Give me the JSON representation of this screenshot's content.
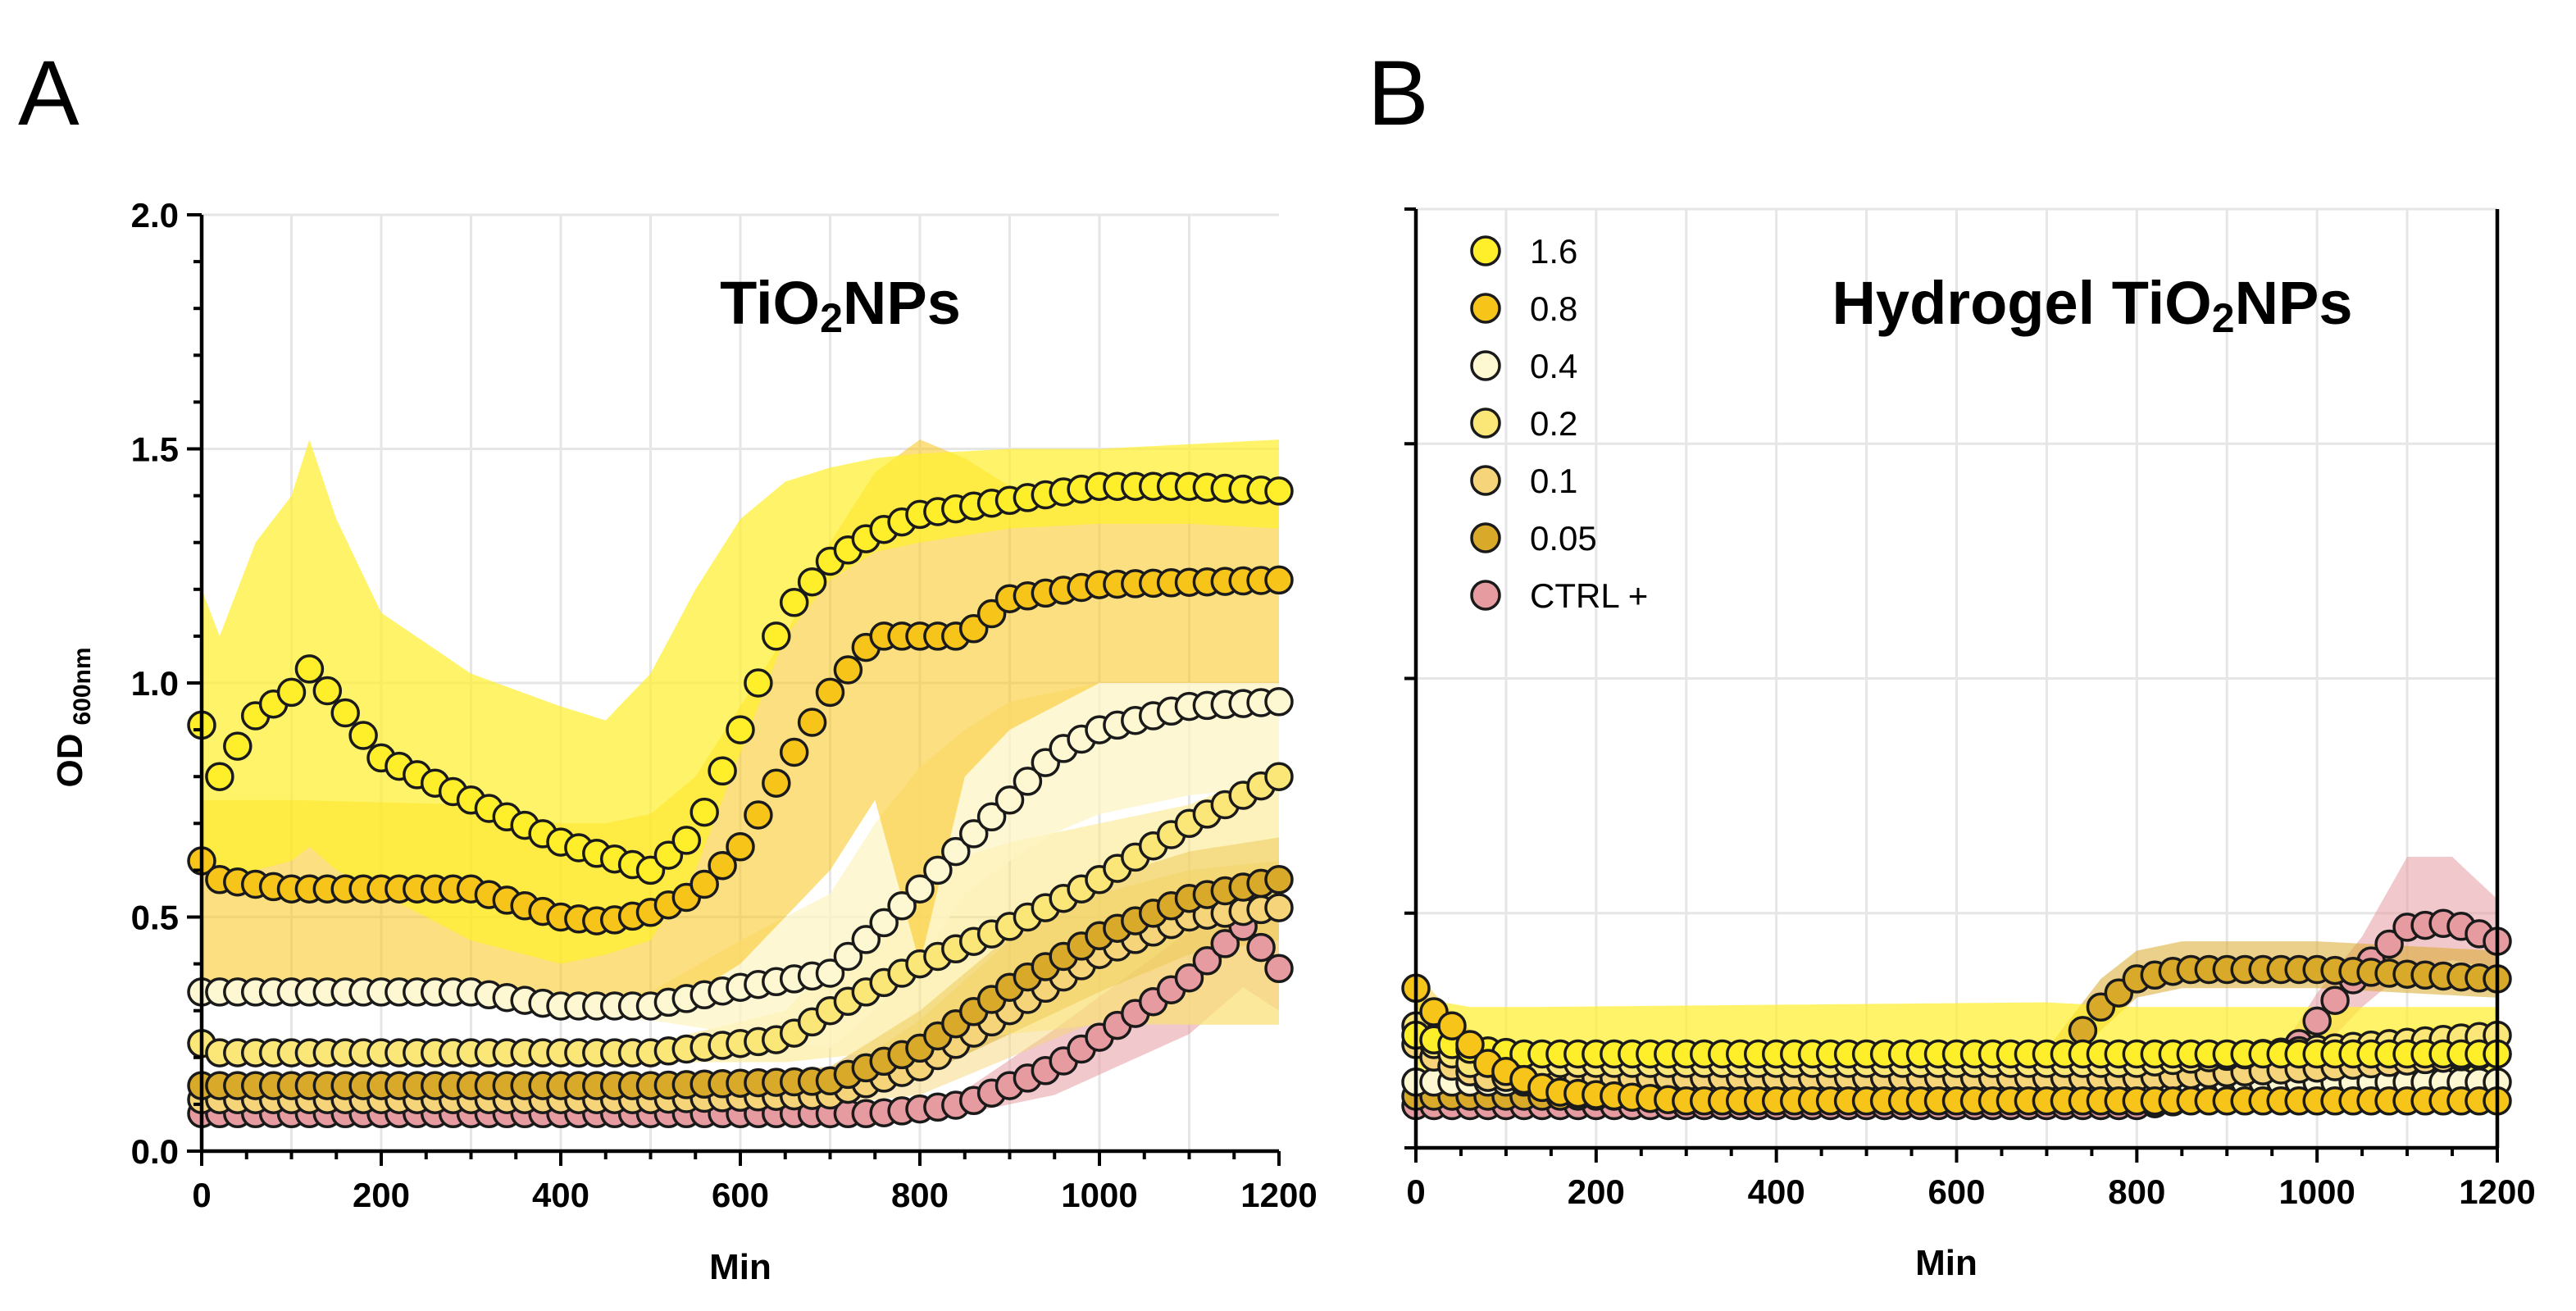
{
  "panels": [
    {
      "letter": "A"
    },
    {
      "letter": "B"
    }
  ],
  "legend": [
    {
      "label": "1.6",
      "color": "#FFEF2A"
    },
    {
      "label": "0.8",
      "color": "#F7C419"
    },
    {
      "label": "0.4",
      "color": "#FDF7D2"
    },
    {
      "label": "0.2",
      "color": "#FBE678"
    },
    {
      "label": "0.1",
      "color": "#F6D57A"
    },
    {
      "label": "0.05",
      "color": "#D9A929"
    },
    {
      "label": "CTRL +",
      "color": "#E69BA0"
    }
  ],
  "chart_data": [
    {
      "type": "scatter",
      "panel": "A",
      "title_main": "TiO",
      "title_sub": "2",
      "title_rest": "NPs",
      "ylabel_main": "OD",
      "ylabel_sub": "600nm",
      "xlabel": "Min",
      "xlim": [
        0,
        1200
      ],
      "ylim": [
        0,
        2.0
      ],
      "xticks": [
        0,
        200,
        400,
        600,
        800,
        1000,
        1200
      ],
      "xtick_labels": [
        "0",
        "200",
        "400",
        "600",
        "800",
        "1000",
        "1200"
      ],
      "yticks": [
        0,
        0.5,
        1.0,
        1.5,
        2.0
      ],
      "ytick_labels": [
        "0.0",
        "0.5",
        "1.0",
        "1.5",
        "2.0"
      ],
      "grid": true,
      "series": [
        {
          "name": "CTRL +",
          "color": "#E69BA0",
          "band": "#E69BA0",
          "band_opacity": 0.55,
          "x": [
            0,
            500,
            750,
            850,
            950,
            1100,
            1160,
            1200
          ],
          "y": [
            0.08,
            0.08,
            0.08,
            0.1,
            0.18,
            0.37,
            0.48,
            0.39
          ],
          "lo": [
            0.07,
            0.07,
            0.07,
            0.08,
            0.12,
            0.25,
            0.35,
            0.3
          ],
          "hi": [
            0.09,
            0.09,
            0.09,
            0.13,
            0.26,
            0.47,
            0.58,
            0.5
          ],
          "x_end": 1200
        },
        {
          "name": "0.1",
          "color": "#F6D57A",
          "band": "#F6D57A",
          "band_opacity": 0.5,
          "x": [
            0,
            500,
            700,
            800,
            900,
            1000,
            1100,
            1200
          ],
          "y": [
            0.11,
            0.11,
            0.12,
            0.18,
            0.3,
            0.42,
            0.5,
            0.52
          ],
          "lo": [
            0.1,
            0.1,
            0.1,
            0.12,
            0.2,
            0.28,
            0.27,
            0.27
          ],
          "hi": [
            0.12,
            0.12,
            0.15,
            0.28,
            0.45,
            0.55,
            0.6,
            0.62
          ]
        },
        {
          "name": "0.05",
          "color": "#D9A929",
          "band": "#D9A929",
          "band_opacity": 0.5,
          "x": [
            0,
            500,
            700,
            800,
            900,
            1000,
            1100,
            1200
          ],
          "y": [
            0.14,
            0.14,
            0.15,
            0.22,
            0.35,
            0.46,
            0.54,
            0.58
          ],
          "lo": [
            0.13,
            0.13,
            0.13,
            0.16,
            0.25,
            0.34,
            0.42,
            0.45
          ],
          "hi": [
            0.15,
            0.15,
            0.18,
            0.3,
            0.46,
            0.58,
            0.64,
            0.67
          ]
        },
        {
          "name": "0.2",
          "color": "#FBE678",
          "band": "#FBE678",
          "band_opacity": 0.5,
          "x": [
            0,
            20,
            100,
            500,
            650,
            700,
            800,
            900,
            1000,
            1100,
            1200
          ],
          "y": [
            0.23,
            0.21,
            0.21,
            0.21,
            0.24,
            0.3,
            0.4,
            0.48,
            0.58,
            0.7,
            0.8
          ],
          "lo": [
            0.2,
            0.19,
            0.19,
            0.19,
            0.19,
            0.2,
            0.22,
            0.25,
            0.27,
            0.27,
            0.27
          ],
          "hi": [
            0.26,
            0.23,
            0.23,
            0.23,
            0.3,
            0.4,
            0.6,
            0.66,
            0.7,
            0.74,
            0.82
          ]
        },
        {
          "name": "0.4",
          "color": "#FDF7D2",
          "band": "#FDF4C4",
          "band_opacity": 0.75,
          "x": [
            0,
            300,
            400,
            500,
            600,
            700,
            750,
            800,
            850,
            900,
            950,
            1000,
            1100,
            1200
          ],
          "y": [
            0.34,
            0.34,
            0.31,
            0.31,
            0.35,
            0.38,
            0.47,
            0.56,
            0.66,
            0.75,
            0.85,
            0.9,
            0.95,
            0.96
          ],
          "lo": [
            0.32,
            0.32,
            0.29,
            0.28,
            0.25,
            0.22,
            0.3,
            0.4,
            0.55,
            0.62,
            0.68,
            0.72,
            0.76,
            0.78
          ],
          "hi": [
            0.36,
            0.36,
            0.33,
            0.34,
            0.45,
            0.55,
            0.7,
            0.82,
            0.9,
            0.96,
            0.98,
            1.0,
            1.0,
            1.0
          ]
        },
        {
          "name": "0.8",
          "color": "#F7C419",
          "band": "#F7C419",
          "band_opacity": 0.55,
          "x": [
            0,
            20,
            100,
            300,
            400,
            450,
            500,
            550,
            600,
            650,
            700,
            750,
            800,
            850,
            900,
            1000,
            1200
          ],
          "y": [
            0.62,
            0.58,
            0.56,
            0.56,
            0.5,
            0.49,
            0.51,
            0.55,
            0.65,
            0.82,
            0.98,
            1.1,
            1.1,
            1.1,
            1.18,
            1.21,
            1.22
          ],
          "lo": [
            0.35,
            0.35,
            0.36,
            0.36,
            0.33,
            0.33,
            0.33,
            0.34,
            0.4,
            0.5,
            0.6,
            0.75,
            0.4,
            0.8,
            0.9,
            1.0,
            1.0
          ],
          "hi": [
            0.75,
            0.75,
            0.75,
            0.74,
            0.7,
            0.7,
            0.72,
            0.8,
            0.95,
            1.1,
            1.3,
            1.45,
            1.52,
            1.48,
            1.42,
            1.42,
            1.42
          ]
        },
        {
          "name": "1.6",
          "color": "#FFEF2A",
          "band": "#FFEF2A",
          "band_opacity": 0.7,
          "x": [
            0,
            20,
            60,
            100,
            120,
            150,
            200,
            300,
            400,
            450,
            500,
            550,
            600,
            650,
            700,
            750,
            800,
            900,
            1000,
            1100,
            1200
          ],
          "y": [
            0.91,
            0.8,
            0.93,
            0.98,
            1.03,
            0.96,
            0.84,
            0.75,
            0.66,
            0.63,
            0.6,
            0.68,
            0.9,
            1.15,
            1.26,
            1.32,
            1.36,
            1.39,
            1.42,
            1.42,
            1.41
          ],
          "lo": [
            0.65,
            0.55,
            0.6,
            0.62,
            0.65,
            0.6,
            0.55,
            0.45,
            0.4,
            0.42,
            0.45,
            0.6,
            0.85,
            1.1,
            1.22,
            1.28,
            1.3,
            1.33,
            1.34,
            1.34,
            1.33
          ],
          "hi": [
            1.2,
            1.1,
            1.3,
            1.4,
            1.52,
            1.35,
            1.15,
            1.02,
            0.95,
            0.92,
            1.02,
            1.2,
            1.35,
            1.43,
            1.46,
            1.48,
            1.49,
            1.5,
            1.5,
            1.51,
            1.52
          ]
        }
      ]
    },
    {
      "type": "scatter",
      "panel": "B",
      "title_main": "Hydrogel TiO",
      "title_sub": "2",
      "title_rest": "NPs",
      "xlabel": "Min",
      "xlim": [
        0,
        1200
      ],
      "ylim": [
        0,
        2.0
      ],
      "xticks": [
        0,
        200,
        400,
        600,
        800,
        1000,
        1200
      ],
      "xtick_labels": [
        "0",
        "200",
        "400",
        "600",
        "800",
        "1000",
        "1200"
      ],
      "yticks": [
        0,
        0.5,
        1.0,
        1.5,
        2.0
      ],
      "grid": true,
      "series": [
        {
          "name": "CTRL +",
          "color": "#E69BA0",
          "band": "#E69BA0",
          "band_opacity": 0.55,
          "x": [
            0,
            800,
            900,
            950,
            1000,
            1050,
            1100,
            1150,
            1200
          ],
          "y": [
            0.09,
            0.09,
            0.11,
            0.15,
            0.27,
            0.38,
            0.47,
            0.48,
            0.44
          ],
          "lo": [
            0.08,
            0.08,
            0.09,
            0.12,
            0.2,
            0.3,
            0.38,
            0.4,
            0.38
          ],
          "hi": [
            0.1,
            0.1,
            0.13,
            0.18,
            0.33,
            0.45,
            0.62,
            0.62,
            0.53
          ]
        },
        {
          "name": "0.05",
          "color": "#D9A929",
          "band": "#D9A929",
          "band_opacity": 0.55,
          "x": [
            0,
            600,
            680,
            720,
            760,
            800,
            850,
            900,
            1000,
            1100,
            1200
          ],
          "y": [
            0.11,
            0.11,
            0.13,
            0.2,
            0.3,
            0.36,
            0.38,
            0.38,
            0.38,
            0.37,
            0.36
          ],
          "lo": [
            0.1,
            0.1,
            0.11,
            0.16,
            0.25,
            0.32,
            0.34,
            0.34,
            0.34,
            0.33,
            0.32
          ],
          "hi": [
            0.12,
            0.12,
            0.16,
            0.26,
            0.36,
            0.42,
            0.44,
            0.44,
            0.44,
            0.43,
            0.42
          ]
        },
        {
          "name": "0.4",
          "color": "#FDF7D2",
          "band": "#FDF4C4",
          "band_opacity": 0.6,
          "x": [
            0,
            800,
            1200
          ],
          "y": [
            0.14,
            0.14,
            0.14
          ],
          "lo": [
            0.13,
            0.13,
            0.13
          ],
          "hi": [
            0.15,
            0.15,
            0.15
          ]
        },
        {
          "name": "0.1",
          "color": "#F6D57A",
          "band": "#F6D57A",
          "band_opacity": 0.5,
          "x": [
            0,
            30,
            80,
            800,
            1000,
            1200
          ],
          "y": [
            0.22,
            0.18,
            0.15,
            0.15,
            0.17,
            0.2
          ],
          "lo": [
            0.18,
            0.15,
            0.13,
            0.13,
            0.15,
            0.17
          ],
          "hi": [
            0.26,
            0.22,
            0.18,
            0.18,
            0.2,
            0.24
          ]
        },
        {
          "name": "0.2",
          "color": "#FBE678",
          "band": "#FBE678",
          "band_opacity": 0.5,
          "x": [
            0,
            20,
            60,
            800,
            1000,
            1200
          ],
          "y": [
            0.26,
            0.22,
            0.18,
            0.18,
            0.21,
            0.24
          ],
          "lo": [
            0.22,
            0.19,
            0.16,
            0.16,
            0.19,
            0.22
          ],
          "hi": [
            0.3,
            0.26,
            0.21,
            0.21,
            0.24,
            0.27
          ]
        },
        {
          "name": "1.6",
          "color": "#FFEF2A",
          "band": "#FFEF2A",
          "band_opacity": 0.7,
          "x": [
            0,
            60,
            120,
            700,
            800,
            1200
          ],
          "y": [
            0.24,
            0.21,
            0.2,
            0.2,
            0.2,
            0.2
          ],
          "lo": [
            0.1,
            0.1,
            0.1,
            0.1,
            0.1,
            0.1
          ],
          "hi": [
            0.32,
            0.3,
            0.3,
            0.31,
            0.3,
            0.3
          ]
        },
        {
          "name": "0.8",
          "color": "#F7C419",
          "band": "#F7C419",
          "band_opacity": 0.45,
          "x": [
            0,
            20,
            40,
            80,
            150,
            300,
            1200
          ],
          "y": [
            0.34,
            0.29,
            0.26,
            0.18,
            0.12,
            0.1,
            0.1
          ],
          "lo": [
            0.3,
            0.26,
            0.23,
            0.15,
            0.1,
            0.09,
            0.09
          ],
          "hi": [
            0.38,
            0.33,
            0.29,
            0.21,
            0.14,
            0.11,
            0.11
          ]
        }
      ]
    }
  ]
}
